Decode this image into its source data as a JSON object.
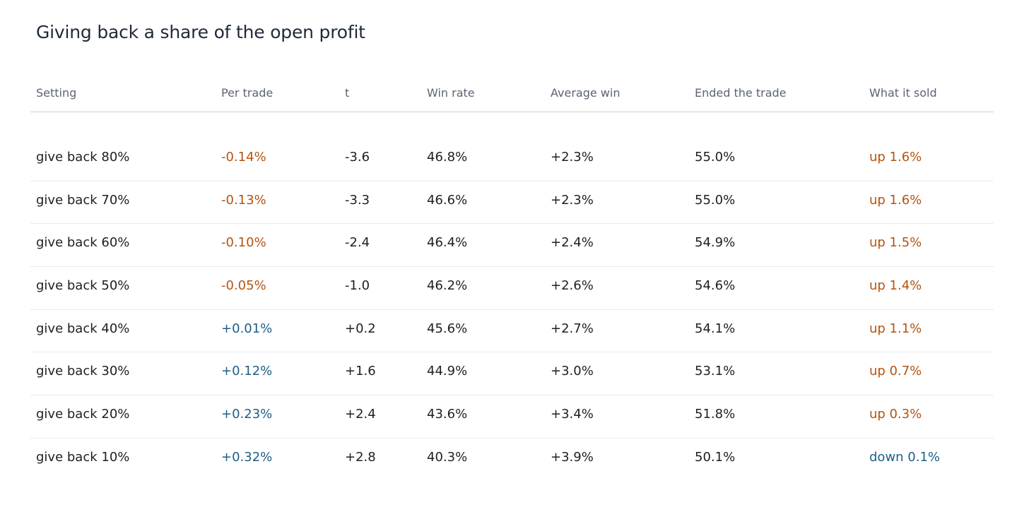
{
  "title": "Giving back a share of the open profit",
  "columns": [
    "Setting",
    "Per trade",
    "t",
    "Win rate",
    "Average win",
    "Ended the trade",
    "What it sold"
  ],
  "colors": {
    "negative": "#b5530f",
    "positive": "#1c5f86"
  },
  "rows": [
    {
      "setting": "give back 80%",
      "per_trade": "-0.14%",
      "per_trade_tone": "negative",
      "t": "-3.6",
      "win_rate": "46.8%",
      "avg_win": "+2.3%",
      "ended": "55.0%",
      "sold": "up 1.6%",
      "sold_tone": "negative"
    },
    {
      "setting": "give back 70%",
      "per_trade": "-0.13%",
      "per_trade_tone": "negative",
      "t": "-3.3",
      "win_rate": "46.6%",
      "avg_win": "+2.3%",
      "ended": "55.0%",
      "sold": "up 1.6%",
      "sold_tone": "negative"
    },
    {
      "setting": "give back 60%",
      "per_trade": "-0.10%",
      "per_trade_tone": "negative",
      "t": "-2.4",
      "win_rate": "46.4%",
      "avg_win": "+2.4%",
      "ended": "54.9%",
      "sold": "up 1.5%",
      "sold_tone": "negative"
    },
    {
      "setting": "give back 50%",
      "per_trade": "-0.05%",
      "per_trade_tone": "negative",
      "t": "-1.0",
      "win_rate": "46.2%",
      "avg_win": "+2.6%",
      "ended": "54.6%",
      "sold": "up 1.4%",
      "sold_tone": "negative"
    },
    {
      "setting": "give back 40%",
      "per_trade": "+0.01%",
      "per_trade_tone": "positive",
      "t": "+0.2",
      "win_rate": "45.6%",
      "avg_win": "+2.7%",
      "ended": "54.1%",
      "sold": "up 1.1%",
      "sold_tone": "negative"
    },
    {
      "setting": "give back 30%",
      "per_trade": "+0.12%",
      "per_trade_tone": "positive",
      "t": "+1.6",
      "win_rate": "44.9%",
      "avg_win": "+3.0%",
      "ended": "53.1%",
      "sold": "up 0.7%",
      "sold_tone": "negative"
    },
    {
      "setting": "give back 20%",
      "per_trade": "+0.23%",
      "per_trade_tone": "positive",
      "t": "+2.4",
      "win_rate": "43.6%",
      "avg_win": "+3.4%",
      "ended": "51.8%",
      "sold": "up 0.3%",
      "sold_tone": "negative"
    },
    {
      "setting": "give back 10%",
      "per_trade": "+0.32%",
      "per_trade_tone": "positive",
      "t": "+2.8",
      "win_rate": "40.3%",
      "avg_win": "+3.9%",
      "ended": "50.1%",
      "sold": "down 0.1%",
      "sold_tone": "positive"
    }
  ]
}
